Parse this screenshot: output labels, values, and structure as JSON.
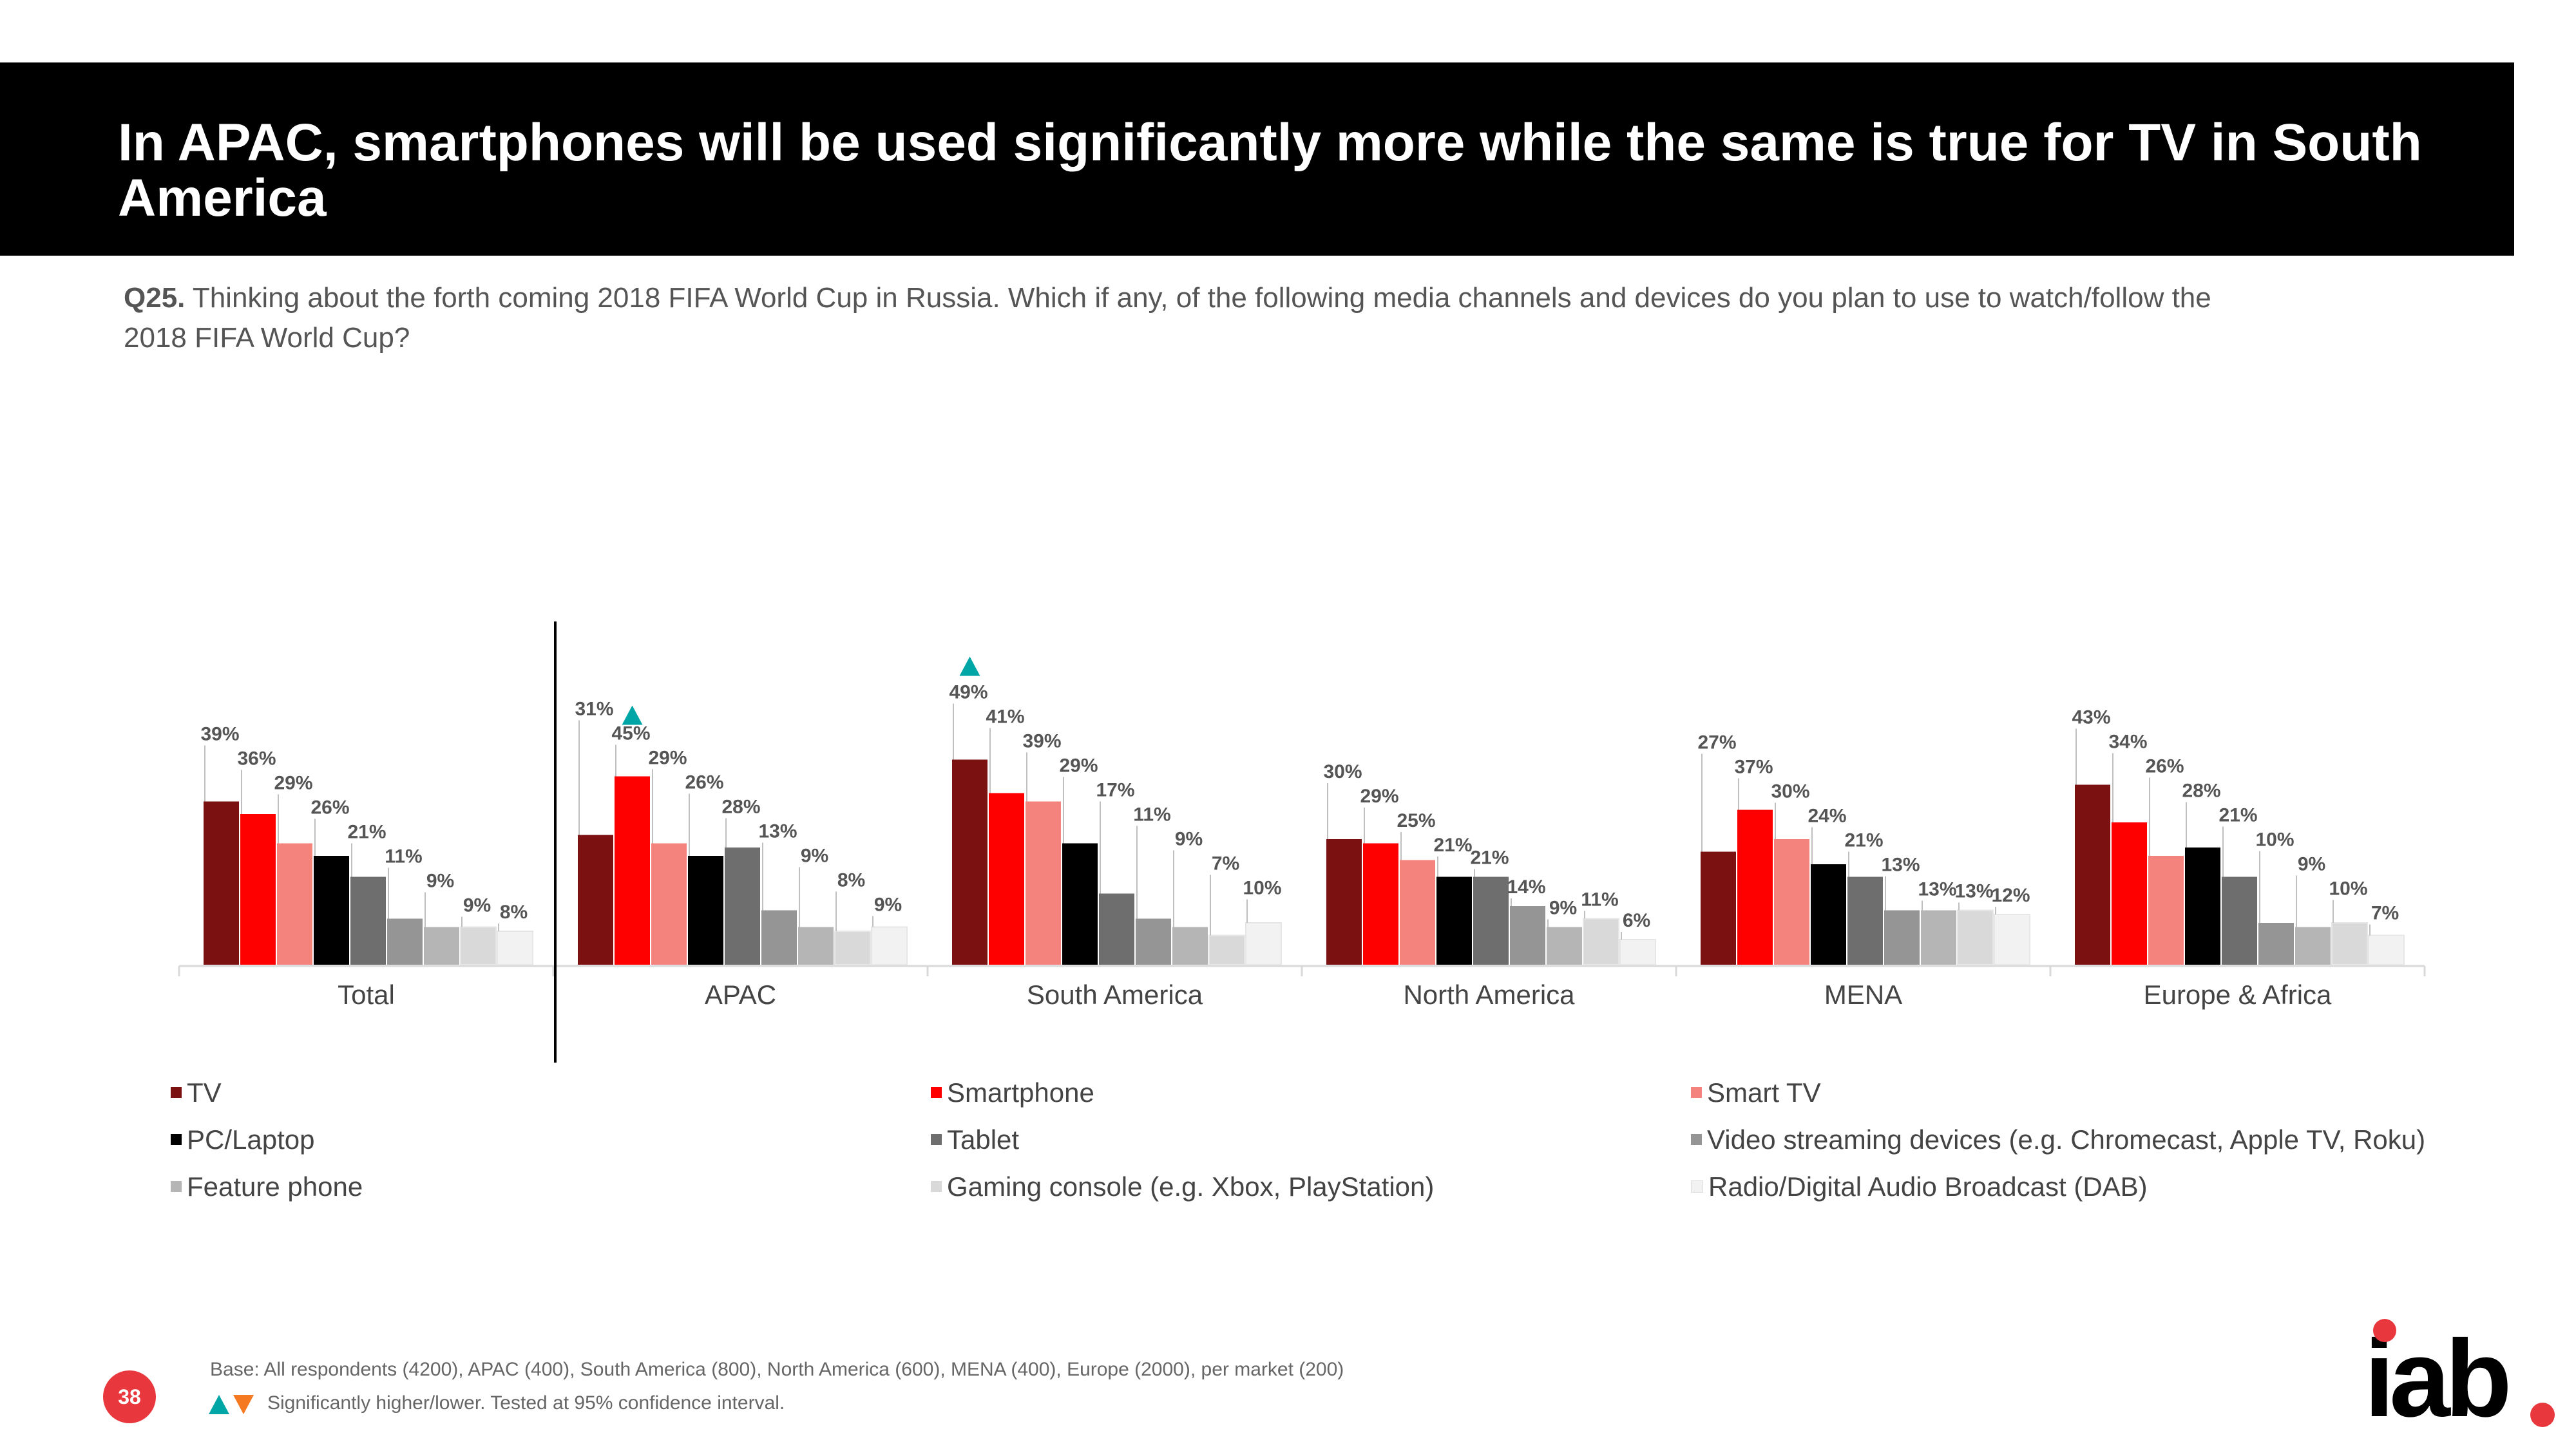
{
  "title": "In APAC, smartphones will be used significantly more while the same is true for TV in South America",
  "question": {
    "label": "Q25.",
    "text": "Thinking about the forth coming 2018 FIFA World Cup in Russia. Which if any, of the following media channels and devices do you plan to use to watch/follow the 2018 FIFA World Cup?"
  },
  "chart_data": {
    "type": "bar",
    "title": "",
    "xlabel": "",
    "ylabel": "",
    "ylim": [
      0,
      50
    ],
    "categories": [
      "Total",
      "APAC",
      "South America",
      "North America",
      "MENA",
      "Europe & Africa"
    ],
    "series": [
      {
        "name": "TV",
        "color": "#7b1111",
        "values": [
          39,
          31,
          49,
          30,
          27,
          43
        ]
      },
      {
        "name": "Smartphone",
        "color": "#ff0000",
        "values": [
          36,
          45,
          41,
          29,
          37,
          34
        ]
      },
      {
        "name": "Smart TV",
        "color": "#f4837d",
        "values": [
          29,
          29,
          39,
          25,
          30,
          26
        ]
      },
      {
        "name": "PC/Laptop",
        "color": "#000000",
        "values": [
          26,
          26,
          29,
          21,
          24,
          28
        ]
      },
      {
        "name": "Tablet",
        "color": "#6e6e6e",
        "values": [
          21,
          28,
          17,
          21,
          21,
          21
        ]
      },
      {
        "name": "Video streaming devices (e.g. Chromecast, Apple TV, Roku)",
        "color": "#959595",
        "values": [
          11,
          13,
          11,
          14,
          13,
          10
        ]
      },
      {
        "name": "Feature phone",
        "color": "#b5b5b5",
        "values": [
          9,
          9,
          9,
          9,
          13,
          9
        ]
      },
      {
        "name": "Gaming console (e.g. Xbox, PlayStation)",
        "color": "#d9d9d9",
        "values": [
          9,
          8,
          7,
          11,
          13,
          10
        ]
      },
      {
        "name": "Radio/Digital Audio Broadcast (DAB)",
        "color": "#f2f2f2",
        "values": [
          8,
          9,
          10,
          6,
          12,
          7
        ]
      }
    ],
    "significance_markers": [
      {
        "category": "APAC",
        "series": "Smartphone",
        "direction": "higher"
      },
      {
        "category": "South America",
        "series": "TV",
        "direction": "higher"
      }
    ]
  },
  "footer": {
    "base": "Base: All respondents (4200), APAC (400), South America (800), North America (600), MENA (400), Europe (2000), per market (200)",
    "significance": "Significantly higher/lower. Tested at 95% confidence interval."
  },
  "page_number": "38",
  "logo": "iab",
  "colors": {
    "higher": "#00a6a6",
    "lower": "#f47920",
    "accent": "#e8383d"
  }
}
